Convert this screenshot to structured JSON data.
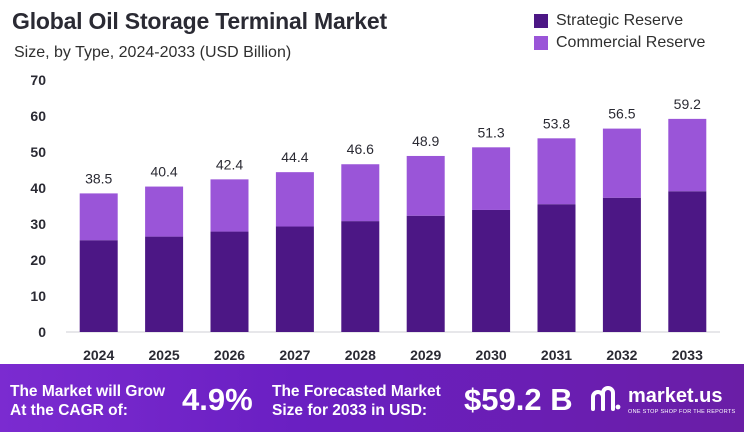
{
  "header": {
    "title": "Global Oil Storage Terminal Market",
    "subtitle": "Size, by Type, 2024-2033 (USD Billion)"
  },
  "colors": {
    "strategic": "#4c1785",
    "commercial": "#9a55d8",
    "banner": "#6a1fc2"
  },
  "chart_data": {
    "type": "bar",
    "stacked": true,
    "categories": [
      "2024",
      "2025",
      "2026",
      "2027",
      "2028",
      "2029",
      "2030",
      "2031",
      "2032",
      "2033"
    ],
    "series": [
      {
        "name": "Strategic Reserve",
        "values": [
          25.5,
          26.5,
          27.9,
          29.3,
          30.8,
          32.3,
          33.9,
          35.5,
          37.3,
          39.1
        ]
      },
      {
        "name": "Commercial Reserve",
        "values": [
          13.0,
          13.9,
          14.5,
          15.1,
          15.8,
          16.6,
          17.4,
          18.3,
          19.2,
          20.1
        ]
      }
    ],
    "totals": [
      "38.5",
      "40.4",
      "42.4",
      "44.4",
      "46.6",
      "48.9",
      "51.3",
      "53.8",
      "56.5",
      "59.2"
    ],
    "yticks": [
      "0",
      "10",
      "20",
      "30",
      "40",
      "50",
      "60",
      "70"
    ],
    "ylim": [
      0,
      70
    ],
    "legend_position": "top-right",
    "grid": false
  },
  "banner": {
    "cagr_line1": "The Market will Grow",
    "cagr_line2": "At the CAGR of:",
    "cagr_value": "4.9%",
    "forecast_line1": "The Forecasted Market",
    "forecast_line2": "Size for 2033 in USD:",
    "forecast_value": "$59.2 B",
    "brand_name": "market.us",
    "brand_tagline": "ONE STOP SHOP FOR THE REPORTS"
  }
}
